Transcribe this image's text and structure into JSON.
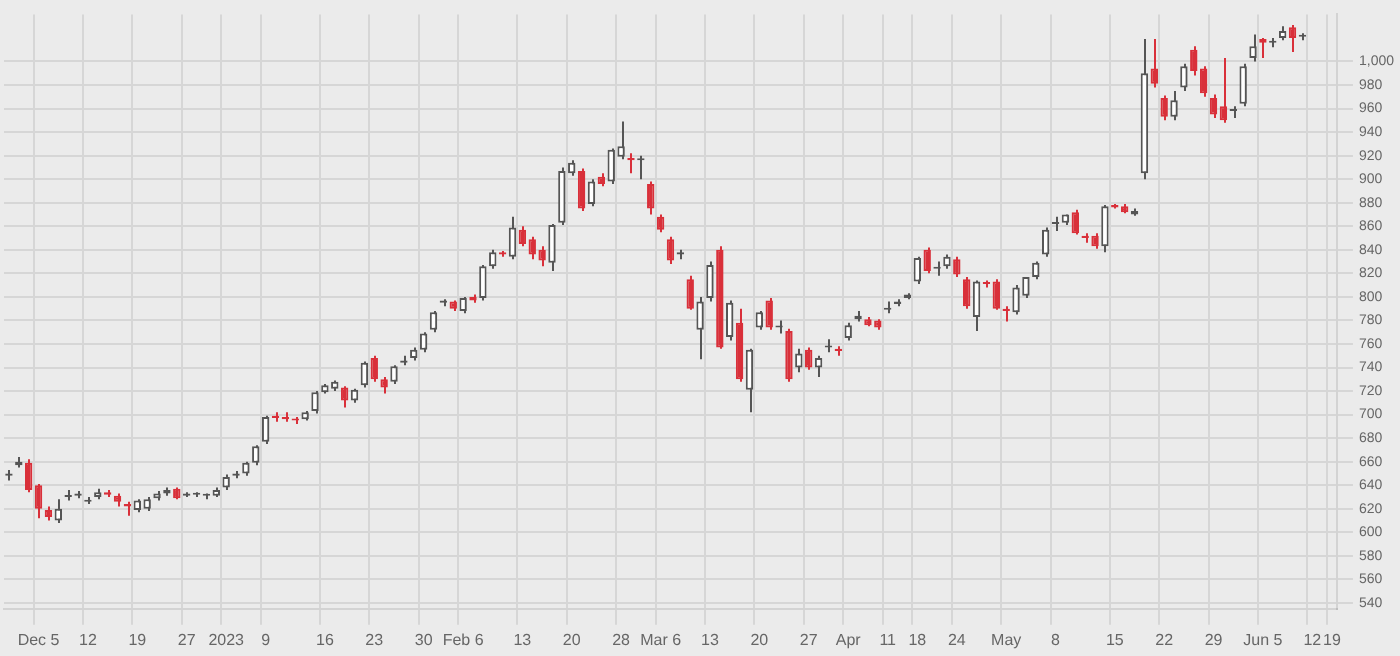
{
  "chart_data": {
    "type": "candlestick",
    "grid": true,
    "tick_labels": "xy",
    "categories": [
      null,
      null,
      null,
      "Dec 5",
      null,
      null,
      null,
      null,
      "12",
      null,
      null,
      null,
      null,
      "19",
      null,
      null,
      null,
      null,
      "27",
      null,
      null,
      null,
      "2023",
      null,
      null,
      null,
      "9",
      null,
      null,
      null,
      null,
      null,
      "16",
      null,
      null,
      null,
      null,
      "23",
      null,
      null,
      null,
      null,
      "30",
      null,
      null,
      null,
      "Feb 6",
      null,
      null,
      null,
      null,
      null,
      "13",
      null,
      null,
      null,
      null,
      "20",
      null,
      null,
      null,
      null,
      "28",
      null,
      null,
      null,
      "Mar 6",
      null,
      null,
      null,
      null,
      "13",
      null,
      null,
      null,
      null,
      "20",
      null,
      null,
      null,
      null,
      "27",
      null,
      null,
      null,
      "Apr",
      null,
      null,
      null,
      "11",
      null,
      null,
      "18",
      null,
      null,
      null,
      "24",
      null,
      null,
      null,
      null,
      "May",
      null,
      null,
      null,
      null,
      "8",
      null,
      null,
      null,
      null,
      null,
      "15",
      null,
      null,
      null,
      null,
      "22",
      null,
      null,
      null,
      null,
      "29",
      null,
      null,
      null,
      null,
      "Jun 5",
      null,
      null,
      null,
      null,
      "12",
      null,
      "19"
    ],
    "ylim": [
      535,
      1040
    ],
    "yticks": [
      540,
      560,
      580,
      600,
      620,
      640,
      660,
      680,
      700,
      720,
      740,
      760,
      780,
      800,
      820,
      840,
      860,
      880,
      900,
      920,
      940,
      960,
      980,
      {
        "value": 1000,
        "label": "1,000"
      }
    ],
    "ohlc": [
      [
        648,
        653,
        644,
        650
      ],
      [
        657,
        664,
        655,
        660
      ],
      [
        659,
        662,
        634,
        636
      ],
      [
        640,
        641,
        612,
        620
      ],
      [
        619,
        622,
        610,
        613
      ],
      [
        610,
        628,
        608,
        620
      ],
      [
        630,
        636,
        627,
        631
      ],
      [
        631,
        635,
        629,
        633
      ],
      [
        626,
        630,
        624,
        627
      ],
      [
        630,
        637,
        628,
        634
      ],
      [
        634,
        636,
        630,
        632
      ],
      [
        631,
        633,
        622,
        626
      ],
      [
        624,
        626,
        614,
        622
      ],
      [
        619,
        628,
        617,
        627
      ],
      [
        620,
        630,
        618,
        628
      ],
      [
        629,
        635,
        627,
        633
      ],
      [
        633,
        638,
        631,
        636
      ],
      [
        637,
        638,
        628,
        629
      ],
      [
        631,
        634,
        630,
        633
      ],
      [
        632,
        634,
        630,
        633
      ],
      [
        631,
        633,
        628,
        631
      ],
      [
        631,
        638,
        630,
        636
      ],
      [
        638,
        649,
        636,
        647
      ],
      [
        648,
        652,
        646,
        650
      ],
      [
        650,
        660,
        648,
        659
      ],
      [
        659,
        674,
        657,
        673
      ],
      [
        677,
        699,
        675,
        698
      ],
      [
        699,
        702,
        694,
        697
      ],
      [
        698,
        702,
        694,
        696
      ],
      [
        696,
        698,
        692,
        695
      ],
      [
        696,
        703,
        695,
        702
      ],
      [
        703,
        720,
        701,
        719
      ],
      [
        719,
        726,
        718,
        725
      ],
      [
        722,
        729,
        720,
        728
      ],
      [
        723,
        724,
        706,
        712
      ],
      [
        712,
        722,
        710,
        721
      ],
      [
        725,
        745,
        723,
        744
      ],
      [
        748,
        750,
        728,
        730
      ],
      [
        730,
        732,
        718,
        723
      ],
      [
        728,
        742,
        726,
        741
      ],
      [
        744,
        750,
        742,
        746
      ],
      [
        748,
        757,
        746,
        755
      ],
      [
        755,
        770,
        753,
        769
      ],
      [
        772,
        788,
        770,
        787
      ],
      [
        795,
        798,
        792,
        797
      ],
      [
        796,
        797,
        788,
        790
      ],
      [
        788,
        800,
        786,
        799
      ],
      [
        800,
        802,
        795,
        797
      ],
      [
        799,
        827,
        797,
        826
      ],
      [
        826,
        840,
        824,
        838
      ],
      [
        838,
        839,
        834,
        836
      ],
      [
        834,
        868,
        832,
        859
      ],
      [
        857,
        860,
        843,
        845
      ],
      [
        849,
        851,
        832,
        836
      ],
      [
        840,
        843,
        826,
        831
      ],
      [
        829,
        862,
        822,
        861
      ],
      [
        863,
        910,
        861,
        907
      ],
      [
        905,
        916,
        903,
        914
      ],
      [
        907,
        909,
        873,
        875
      ],
      [
        879,
        900,
        877,
        898
      ],
      [
        902,
        905,
        894,
        896
      ],
      [
        898,
        926,
        896,
        925
      ],
      [
        919,
        949,
        917,
        928
      ],
      [
        918,
        922,
        905,
        916
      ],
      [
        916,
        920,
        900,
        916
      ],
      [
        896,
        898,
        870,
        875
      ],
      [
        868,
        870,
        855,
        857
      ],
      [
        849,
        851,
        828,
        831
      ],
      [
        836,
        840,
        832,
        838
      ],
      [
        815,
        818,
        789,
        790
      ],
      [
        772,
        800,
        747,
        796
      ],
      [
        799,
        830,
        796,
        827
      ],
      [
        840,
        843,
        756,
        757
      ],
      [
        766,
        797,
        763,
        795
      ],
      [
        778,
        790,
        728,
        730
      ],
      [
        721,
        756,
        702,
        755
      ],
      [
        774,
        788,
        772,
        787
      ],
      [
        797,
        799,
        772,
        774
      ],
      [
        774,
        780,
        769,
        775
      ],
      [
        771,
        773,
        728,
        730
      ],
      [
        740,
        756,
        736,
        752
      ],
      [
        755,
        757,
        738,
        740
      ],
      [
        740,
        750,
        732,
        748
      ],
      [
        757,
        764,
        753,
        758
      ],
      [
        756,
        758,
        750,
        754
      ],
      [
        765,
        778,
        763,
        776
      ],
      [
        781,
        788,
        779,
        784
      ],
      [
        781,
        783,
        775,
        776
      ],
      [
        780,
        781,
        772,
        774
      ],
      [
        789,
        796,
        786,
        790
      ],
      [
        794,
        798,
        792,
        796
      ],
      [
        799,
        803,
        798,
        802
      ],
      [
        813,
        834,
        811,
        833
      ],
      [
        840,
        842,
        820,
        822
      ],
      [
        824,
        830,
        818,
        824
      ],
      [
        826,
        836,
        824,
        834
      ],
      [
        832,
        834,
        817,
        819
      ],
      [
        815,
        817,
        790,
        792
      ],
      [
        783,
        814,
        771,
        813
      ],
      [
        812,
        814,
        808,
        811
      ],
      [
        813,
        815,
        789,
        790
      ],
      [
        790,
        792,
        779,
        788
      ],
      [
        787,
        810,
        785,
        808
      ],
      [
        801,
        817,
        799,
        817
      ],
      [
        817,
        830,
        815,
        829
      ],
      [
        836,
        859,
        834,
        857
      ],
      [
        862,
        868,
        856,
        863
      ],
      [
        863,
        870,
        861,
        870
      ],
      [
        872,
        874,
        853,
        854
      ],
      [
        852,
        854,
        846,
        850
      ],
      [
        852,
        854,
        841,
        843
      ],
      [
        843,
        878,
        838,
        877
      ],
      [
        878,
        879,
        875,
        876
      ],
      [
        877,
        879,
        871,
        872
      ],
      [
        870,
        875,
        869,
        873
      ],
      [
        905,
        1019,
        900,
        990
      ],
      [
        994,
        1019,
        978,
        981
      ],
      [
        969,
        971,
        950,
        953
      ],
      [
        953,
        975,
        950,
        967
      ],
      [
        978,
        998,
        975,
        996
      ],
      [
        1010,
        1013,
        988,
        992
      ],
      [
        994,
        996,
        970,
        973
      ],
      [
        969,
        972,
        952,
        955
      ],
      [
        962,
        1003,
        948,
        950
      ],
      [
        958,
        962,
        952,
        958
      ],
      [
        964,
        998,
        962,
        996
      ],
      [
        1003,
        1023,
        1000,
        1013
      ],
      [
        1019,
        1020,
        1003,
        1016
      ],
      [
        1016,
        1020,
        1012,
        1017
      ],
      [
        1020,
        1030,
        1018,
        1026
      ],
      [
        1029,
        1031,
        1008,
        1020
      ],
      [
        1021,
        1024,
        1018,
        1022
      ],
      null,
      null,
      null
    ]
  }
}
